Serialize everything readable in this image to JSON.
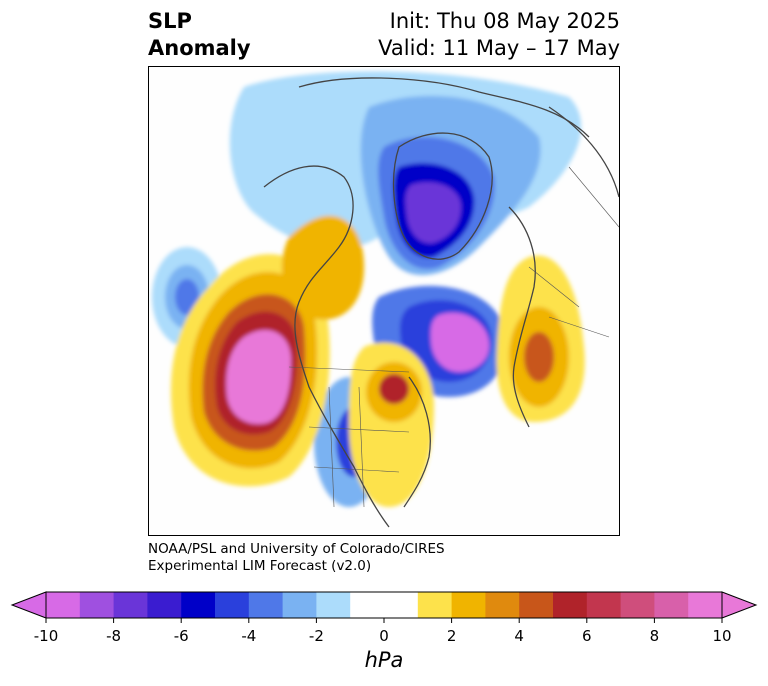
{
  "title": {
    "left_line1": "SLP",
    "left_line2": "Anomaly",
    "right_line1": "Init: Thu 08 May 2025",
    "right_line2": "Valid: 11 May – 17 May"
  },
  "credit": {
    "line1": "NOAA/PSL and University of Colorado/CIRES",
    "line2": "Experimental LIM Forecast (v2.0)"
  },
  "colorbar": {
    "units_label": "hPa",
    "levels": [
      -10,
      -9,
      -8,
      -7,
      -6,
      -5,
      -4,
      -3,
      -2,
      -1,
      1,
      2,
      3,
      4,
      5,
      6,
      7,
      8,
      9,
      10
    ],
    "colors": [
      "#d76ae6",
      "#9f50e0",
      "#6a35d8",
      "#3a1cd0",
      "#0000c8",
      "#2a40dc",
      "#4f78e8",
      "#7ab2f2",
      "#acdcfb",
      "#ffffff",
      "#fde24b",
      "#f0b400",
      "#e08a0e",
      "#c8561a",
      "#b0232a",
      "#c2364e",
      "#cf4e7c",
      "#d860aa",
      "#e878d8"
    ],
    "tick_labels": [
      "-10",
      "-8",
      "-6",
      "-4",
      "-2",
      "0",
      "2",
      "4",
      "6",
      "8",
      "10"
    ],
    "extend_low_color": "#d76ae6",
    "extend_high_color": "#e878d8"
  },
  "map": {
    "projection": "polar-stereographic",
    "field": "sea-level-pressure-anomaly"
  }
}
